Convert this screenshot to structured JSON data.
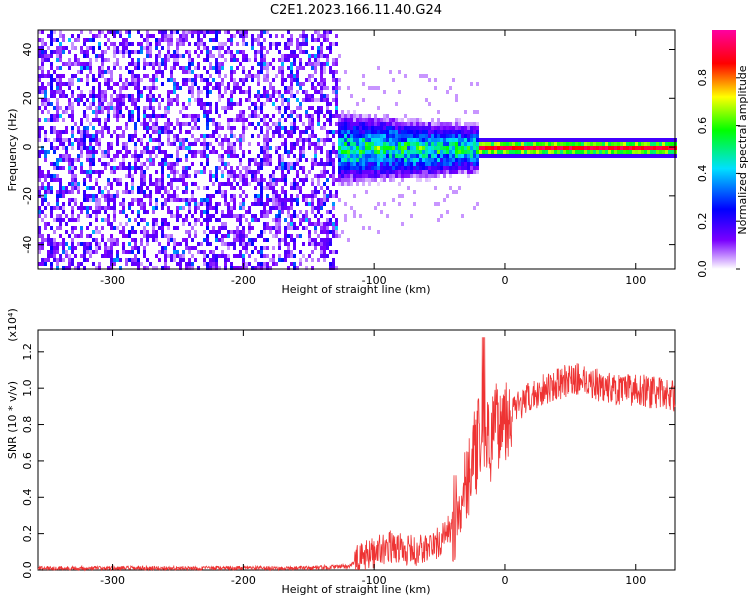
{
  "title": "C2E1.2023.166.11.40.G24",
  "chart_data": [
    {
      "type": "heatmap",
      "xlabel": "Height of straight line (km)",
      "ylabel": "Frequency (Hz)",
      "xlim": [
        -357,
        130
      ],
      "ylim": [
        -50,
        48
      ],
      "xticks": [
        -300,
        -200,
        -100,
        0,
        100
      ],
      "yticks": [
        -40,
        -20,
        0,
        20,
        40
      ],
      "colorbar": {
        "label": "Normalized spectral amplitude",
        "range": [
          0,
          1
        ],
        "ticks": [
          "0.0",
          "0.2",
          "0.4",
          "0.6",
          "0.8"
        ],
        "colors": [
          "#ffffff",
          "#7a00ff",
          "#0000ff",
          "#00e0ff",
          "#00ff00",
          "#ffff00",
          "#ff0000",
          "#ff00a0"
        ]
      },
      "regions": [
        {
          "x_from": -357,
          "x_to": -128,
          "freq_half_width": 50,
          "amplitude": 0.15,
          "note": "broadband"
        },
        {
          "x_from": -128,
          "x_to": -20,
          "freq_half_width": 12,
          "amplitude": 0.35
        },
        {
          "x_from": -20,
          "x_to": 130,
          "freq_half_width": 2,
          "amplitude": 0.9
        }
      ]
    },
    {
      "type": "line",
      "xlabel": "Height of straight line (km)",
      "ylabel": "SNR (10 * v/v)",
      "exponent_label": "(x10⁴)",
      "xlim": [
        -357,
        130
      ],
      "ylim": [
        0,
        1.32
      ],
      "xticks": [
        -300,
        -200,
        -100,
        0,
        100
      ],
      "yticks": [
        "0.0",
        "0.2",
        "0.4",
        "0.6",
        "0.8",
        "1.0",
        "1.2"
      ],
      "series": [
        {
          "color": "#ee3333",
          "x": [
            -357,
            -300,
            -250,
            -200,
            -150,
            -120,
            -110,
            -100,
            -90,
            -80,
            -70,
            -60,
            -50,
            -40,
            -35,
            -30,
            -25,
            -20,
            -15,
            -12,
            -10,
            -5,
            0,
            10,
            20,
            30,
            40,
            50,
            60,
            70,
            80,
            90,
            100,
            110,
            120,
            130
          ],
          "y": [
            0.01,
            0.01,
            0.01,
            0.01,
            0.01,
            0.02,
            0.06,
            0.1,
            0.13,
            0.12,
            0.1,
            0.12,
            0.15,
            0.25,
            0.35,
            0.5,
            0.6,
            0.7,
            0.75,
            0.7,
            0.73,
            0.8,
            0.85,
            0.9,
            0.95,
            1.0,
            1.02,
            1.05,
            1.05,
            1.02,
            1.0,
            0.98,
            1.0,
            0.98,
            0.97,
            0.96
          ]
        }
      ]
    }
  ]
}
